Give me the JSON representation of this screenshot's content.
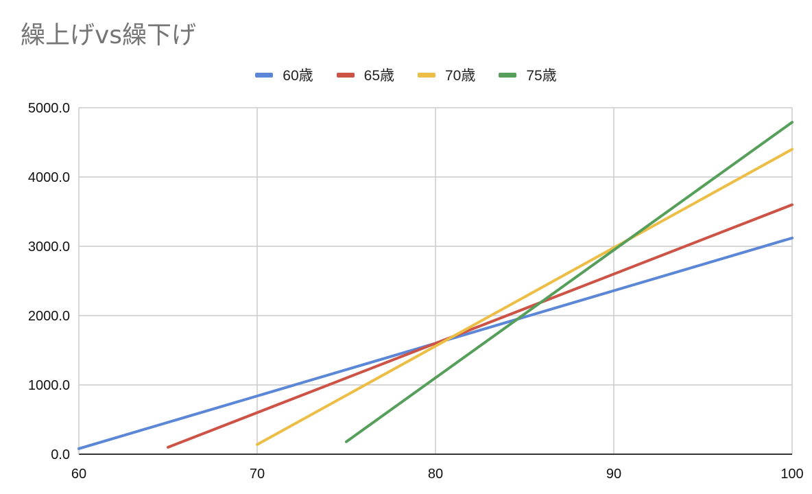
{
  "chart_data": {
    "type": "line",
    "title": "繰上げvs繰下げ",
    "xlim": [
      60,
      100
    ],
    "ylim": [
      0,
      5000
    ],
    "x_ticks": [
      "60",
      "70",
      "80",
      "90",
      "100"
    ],
    "y_ticks": [
      "0.0",
      "1000.0",
      "2000.0",
      "3000.0",
      "4000.0",
      "5000.0"
    ],
    "grid": true,
    "legend_position": "top",
    "series": [
      {
        "name": "60歳",
        "color": "#5b87d6",
        "points": [
          [
            60,
            80
          ],
          [
            100,
            3120
          ]
        ]
      },
      {
        "name": "65歳",
        "color": "#cc5345",
        "points": [
          [
            65,
            100
          ],
          [
            100,
            3600
          ]
        ]
      },
      {
        "name": "70歳",
        "color": "#ecbe45",
        "points": [
          [
            70,
            140
          ],
          [
            100,
            4400
          ]
        ]
      },
      {
        "name": "75歳",
        "color": "#569f5a",
        "points": [
          [
            75,
            180
          ],
          [
            100,
            4790
          ]
        ]
      }
    ]
  }
}
